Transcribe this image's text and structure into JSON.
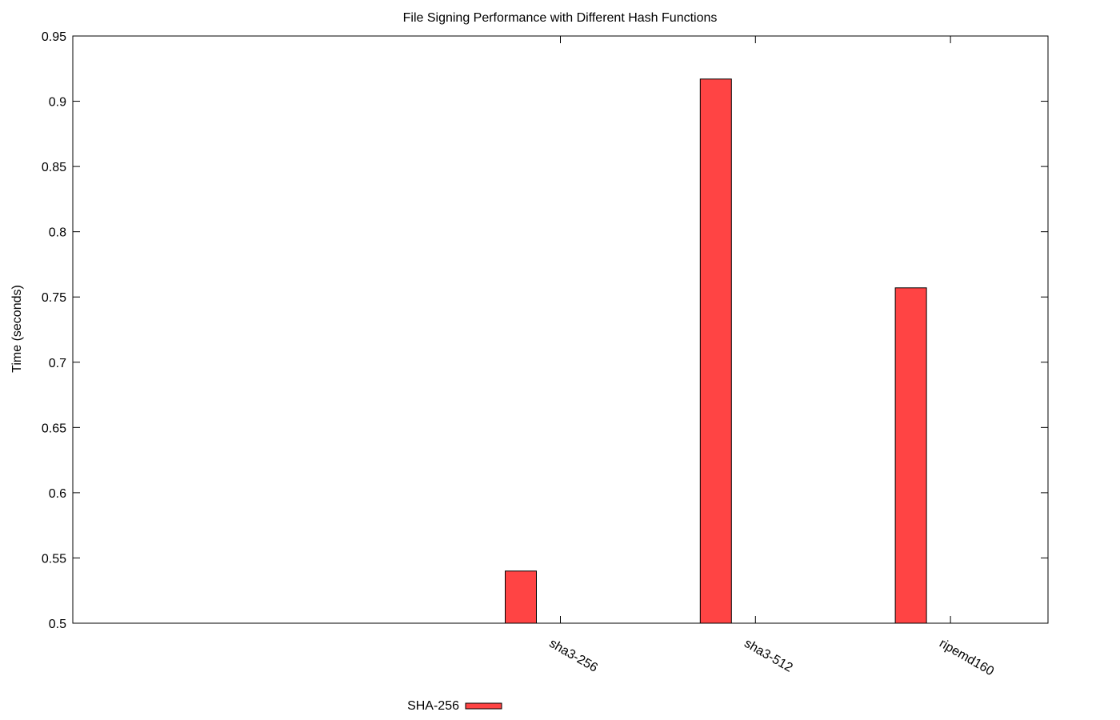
{
  "chart_data": {
    "type": "bar",
    "title": "File Signing Performance with Different Hash Functions",
    "xlabel": "",
    "ylabel": "Time (seconds)",
    "categories": [
      "",
      "",
      "sha3-256",
      "sha3-512",
      "ripemd160"
    ],
    "series": [
      {
        "name": "SHA-256",
        "values": [
          null,
          null,
          0.54,
          0.917,
          0.757
        ],
        "color": "#ff4444"
      }
    ],
    "ylim": [
      0.5,
      0.95
    ],
    "yticks": [
      "0.5",
      "0.55",
      "0.6",
      "0.65",
      "0.7",
      "0.75",
      "0.8",
      "0.85",
      "0.9",
      "0.95"
    ],
    "grid": false,
    "legend_position": "bottom"
  }
}
